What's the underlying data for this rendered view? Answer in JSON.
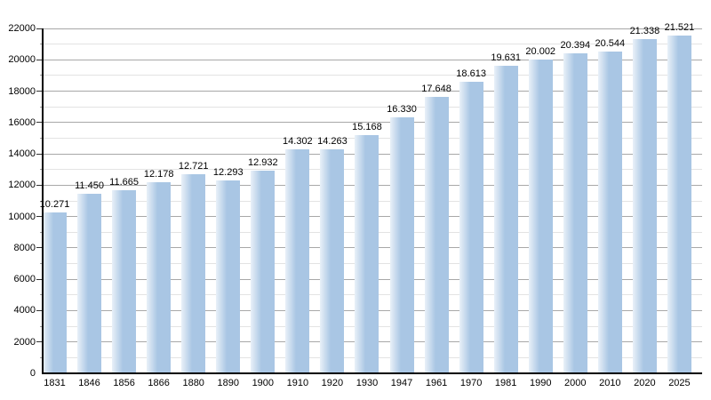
{
  "chart_data": {
    "type": "bar",
    "title": "",
    "xlabel": "",
    "ylabel": "",
    "categories": [
      "1831",
      "1846",
      "1856",
      "1866",
      "1880",
      "1890",
      "1900",
      "1910",
      "1920",
      "1930",
      "1947",
      "1961",
      "1970",
      "1981",
      "1990",
      "2000",
      "2010",
      "2020",
      "2025"
    ],
    "values": [
      10271,
      11450,
      11665,
      12178,
      12721,
      12293,
      12932,
      14302,
      14263,
      15168,
      16330,
      17648,
      18613,
      19631,
      20002,
      20394,
      20544,
      21338,
      21521
    ],
    "value_labels": [
      "10.271",
      "11.450",
      "11.665",
      "12.178",
      "12.721",
      "12.293",
      "12.932",
      "14.302",
      "14.263",
      "15.168",
      "16.330",
      "17.648",
      "18.613",
      "19.631",
      "20.002",
      "20.394",
      "20.544",
      "21.338",
      "21.521"
    ],
    "ylim": [
      0,
      22000
    ],
    "ytick_major_step": 2000,
    "ytick_minor_step": 1000,
    "ytick_labels": [
      "0",
      "2000",
      "4000",
      "6000",
      "8000",
      "10000",
      "12000",
      "14000",
      "16000",
      "18000",
      "20000",
      "22000"
    ],
    "grid": "on",
    "legend": "none",
    "colors": {
      "bar_fill": "#a9c6e4",
      "bar_fill_highlight": "rgba(255,255,255,0.75)",
      "grid_major": "#a8a8a8",
      "grid_minor": "#e3e3e3",
      "axis": "#000000",
      "tick_major": "#333333",
      "tick_minor": "#9a9a9a",
      "text": "#000000",
      "background": "#ffffff"
    }
  }
}
